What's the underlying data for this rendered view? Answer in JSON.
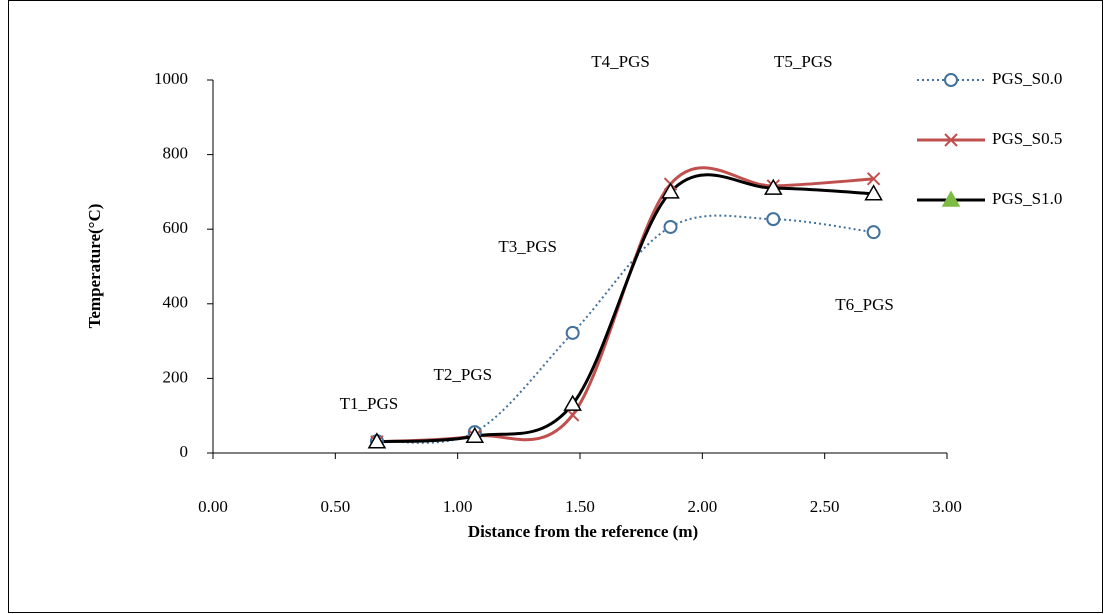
{
  "chart_data": {
    "type": "line",
    "x_label": "Distance from the  reference  (m)",
    "y_label": "Temperature(°C)",
    "x": [
      0.67,
      1.07,
      1.47,
      1.87,
      2.29,
      2.7
    ],
    "annotations": [
      "T1_PGS",
      "T2_PGS",
      "T3_PGS",
      "T4_PGS",
      "T5_PGS",
      "T6_PGS"
    ],
    "series": [
      {
        "name": "PGS_S0.0",
        "color": "#41719c",
        "values": [
          32,
          56,
          322,
          606,
          627,
          592
        ]
      },
      {
        "name": "PGS_S0.5",
        "color": "#c0504d",
        "values": [
          30,
          45,
          102,
          721,
          716,
          735
        ]
      },
      {
        "name": "PGS_S1.0",
        "color": "#000000",
        "values": [
          30,
          45,
          131,
          700,
          710,
          695
        ]
      }
    ],
    "xlim": [
      0,
      3
    ],
    "xticks": [
      {
        "value": 0,
        "label": "0.00"
      },
      {
        "value": 0.5,
        "label": "0.50"
      },
      {
        "value": 1,
        "label": "1.00"
      },
      {
        "value": 1.5,
        "label": "1.50"
      },
      {
        "value": 2,
        "label": "2.00"
      },
      {
        "value": 2.5,
        "label": "2.50"
      },
      {
        "value": 3,
        "label": "3.00"
      }
    ],
    "ylim": [
      0,
      1000
    ],
    "yticks": [
      0,
      200,
      400,
      600,
      800,
      1000
    ],
    "grid": false,
    "legend": "right"
  }
}
